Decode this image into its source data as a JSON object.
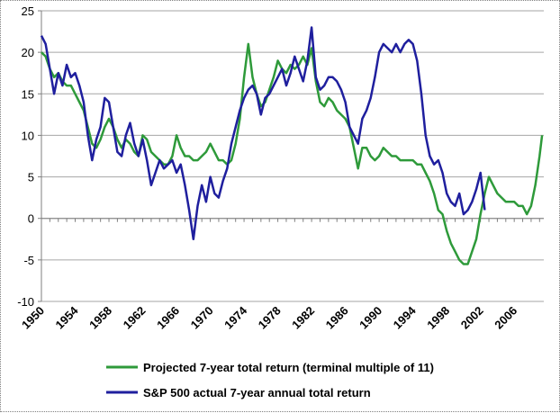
{
  "chart_data": {
    "type": "line",
    "title": "",
    "xlabel": "",
    "ylabel": "",
    "xlim": [
      1950,
      2009.5
    ],
    "ylim": [
      -10,
      25
    ],
    "yticks": [
      -10,
      -5,
      0,
      5,
      10,
      15,
      20,
      25
    ],
    "xticks": [
      1950,
      1954,
      1958,
      1962,
      1966,
      1970,
      1974,
      1978,
      1982,
      1986,
      1990,
      1994,
      1998,
      2002,
      2006
    ],
    "ytick_labels": [
      "-10",
      "-5",
      "0",
      "5",
      "10",
      "15",
      "20",
      "25"
    ],
    "xtick_labels": [
      "1950",
      "1954",
      "1958",
      "1962",
      "1966",
      "1970",
      "1974",
      "1978",
      "1982",
      "1986",
      "1990",
      "1994",
      "1998",
      "2002",
      "2006"
    ],
    "grid": "horizontal",
    "legend_position": "bottom",
    "series": [
      {
        "name": "Projected 7-year total return (terminal multiple of 11)",
        "color": "#2e9a3a",
        "points": [
          [
            1950.0,
            20.0
          ],
          [
            1950.5,
            19.5
          ],
          [
            1951.0,
            18.0
          ],
          [
            1951.5,
            17.0
          ],
          [
            1952.0,
            17.5
          ],
          [
            1952.5,
            16.5
          ],
          [
            1953.0,
            16.0
          ],
          [
            1953.5,
            16.0
          ],
          [
            1954.0,
            15.0
          ],
          [
            1954.5,
            14.0
          ],
          [
            1955.0,
            13.0
          ],
          [
            1955.5,
            11.0
          ],
          [
            1956.0,
            9.0
          ],
          [
            1956.5,
            8.5
          ],
          [
            1957.0,
            9.5
          ],
          [
            1957.5,
            11.0
          ],
          [
            1958.0,
            12.0
          ],
          [
            1958.5,
            11.0
          ],
          [
            1959.0,
            9.5
          ],
          [
            1959.5,
            8.5
          ],
          [
            1960.0,
            9.5
          ],
          [
            1960.5,
            9.0
          ],
          [
            1961.0,
            8.0
          ],
          [
            1961.5,
            7.5
          ],
          [
            1962.0,
            10.0
          ],
          [
            1962.5,
            9.5
          ],
          [
            1963.0,
            8.0
          ],
          [
            1963.5,
            7.5
          ],
          [
            1964.0,
            7.0
          ],
          [
            1964.5,
            6.5
          ],
          [
            1965.0,
            6.5
          ],
          [
            1965.5,
            7.5
          ],
          [
            1966.0,
            10.0
          ],
          [
            1966.5,
            8.5
          ],
          [
            1967.0,
            7.5
          ],
          [
            1967.5,
            7.5
          ],
          [
            1968.0,
            7.0
          ],
          [
            1968.5,
            7.0
          ],
          [
            1969.0,
            7.5
          ],
          [
            1969.5,
            8.0
          ],
          [
            1970.0,
            9.0
          ],
          [
            1970.5,
            8.0
          ],
          [
            1971.0,
            7.0
          ],
          [
            1971.5,
            7.0
          ],
          [
            1972.0,
            6.5
          ],
          [
            1972.5,
            7.0
          ],
          [
            1973.0,
            9.0
          ],
          [
            1973.5,
            12.0
          ],
          [
            1974.0,
            17.0
          ],
          [
            1974.5,
            21.0
          ],
          [
            1975.0,
            17.0
          ],
          [
            1975.5,
            15.0
          ],
          [
            1976.0,
            13.5
          ],
          [
            1976.5,
            14.0
          ],
          [
            1977.0,
            15.5
          ],
          [
            1977.5,
            17.0
          ],
          [
            1978.0,
            19.0
          ],
          [
            1978.5,
            18.0
          ],
          [
            1979.0,
            17.5
          ],
          [
            1979.5,
            18.5
          ],
          [
            1980.0,
            18.0
          ],
          [
            1980.5,
            18.5
          ],
          [
            1981.0,
            19.5
          ],
          [
            1981.5,
            18.5
          ],
          [
            1982.0,
            20.5
          ],
          [
            1982.5,
            16.5
          ],
          [
            1983.0,
            14.0
          ],
          [
            1983.5,
            13.5
          ],
          [
            1984.0,
            14.5
          ],
          [
            1984.5,
            14.0
          ],
          [
            1985.0,
            13.0
          ],
          [
            1985.5,
            12.5
          ],
          [
            1986.0,
            12.0
          ],
          [
            1986.5,
            11.0
          ],
          [
            1987.0,
            8.5
          ],
          [
            1987.5,
            6.0
          ],
          [
            1988.0,
            8.5
          ],
          [
            1988.5,
            8.5
          ],
          [
            1989.0,
            7.5
          ],
          [
            1989.5,
            7.0
          ],
          [
            1990.0,
            7.5
          ],
          [
            1990.5,
            8.5
          ],
          [
            1991.0,
            8.0
          ],
          [
            1991.5,
            7.5
          ],
          [
            1992.0,
            7.5
          ],
          [
            1992.5,
            7.0
          ],
          [
            1993.0,
            7.0
          ],
          [
            1993.5,
            7.0
          ],
          [
            1994.0,
            7.0
          ],
          [
            1994.5,
            6.5
          ],
          [
            1995.0,
            6.5
          ],
          [
            1995.5,
            5.5
          ],
          [
            1996.0,
            4.5
          ],
          [
            1996.5,
            3.0
          ],
          [
            1997.0,
            1.0
          ],
          [
            1997.5,
            0.5
          ],
          [
            1998.0,
            -1.5
          ],
          [
            1998.5,
            -3.0
          ],
          [
            1999.0,
            -4.0
          ],
          [
            1999.5,
            -5.0
          ],
          [
            2000.0,
            -5.5
          ],
          [
            2000.5,
            -5.5
          ],
          [
            2001.0,
            -4.0
          ],
          [
            2001.5,
            -2.5
          ],
          [
            2002.0,
            0.5
          ],
          [
            2002.5,
            3.0
          ],
          [
            2003.0,
            5.0
          ],
          [
            2003.5,
            4.0
          ],
          [
            2004.0,
            3.0
          ],
          [
            2004.5,
            2.5
          ],
          [
            2005.0,
            2.0
          ],
          [
            2005.5,
            2.0
          ],
          [
            2006.0,
            2.0
          ],
          [
            2006.5,
            1.5
          ],
          [
            2007.0,
            1.5
          ],
          [
            2007.5,
            0.5
          ],
          [
            2008.0,
            1.5
          ],
          [
            2008.5,
            4.0
          ],
          [
            2009.0,
            7.5
          ],
          [
            2009.3,
            10.0
          ]
        ]
      },
      {
        "name": "S&P 500 actual 7-year annual total return",
        "color": "#1f1f9e",
        "points": [
          [
            1950.0,
            22.0
          ],
          [
            1950.5,
            21.0
          ],
          [
            1951.0,
            18.0
          ],
          [
            1951.5,
            15.0
          ],
          [
            1952.0,
            17.5
          ],
          [
            1952.5,
            16.0
          ],
          [
            1953.0,
            18.5
          ],
          [
            1953.5,
            17.0
          ],
          [
            1954.0,
            17.5
          ],
          [
            1954.5,
            16.0
          ],
          [
            1955.0,
            14.0
          ],
          [
            1955.5,
            10.0
          ],
          [
            1956.0,
            7.0
          ],
          [
            1956.5,
            9.5
          ],
          [
            1957.0,
            11.0
          ],
          [
            1957.5,
            14.5
          ],
          [
            1958.0,
            14.0
          ],
          [
            1958.5,
            11.0
          ],
          [
            1959.0,
            8.0
          ],
          [
            1959.5,
            7.5
          ],
          [
            1960.0,
            10.0
          ],
          [
            1960.5,
            11.5
          ],
          [
            1961.0,
            9.0
          ],
          [
            1961.5,
            7.5
          ],
          [
            1962.0,
            9.5
          ],
          [
            1962.5,
            7.0
          ],
          [
            1963.0,
            4.0
          ],
          [
            1963.5,
            5.5
          ],
          [
            1964.0,
            7.0
          ],
          [
            1964.5,
            6.0
          ],
          [
            1965.0,
            6.5
          ],
          [
            1965.5,
            7.0
          ],
          [
            1966.0,
            5.5
          ],
          [
            1966.5,
            6.5
          ],
          [
            1967.0,
            4.0
          ],
          [
            1967.5,
            1.0
          ],
          [
            1968.0,
            -2.5
          ],
          [
            1968.5,
            1.5
          ],
          [
            1969.0,
            4.0
          ],
          [
            1969.5,
            2.0
          ],
          [
            1970.0,
            5.0
          ],
          [
            1970.5,
            3.0
          ],
          [
            1971.0,
            2.5
          ],
          [
            1971.5,
            4.5
          ],
          [
            1972.0,
            6.0
          ],
          [
            1972.5,
            9.0
          ],
          [
            1973.0,
            11.0
          ],
          [
            1973.5,
            13.0
          ],
          [
            1974.0,
            14.5
          ],
          [
            1974.5,
            15.5
          ],
          [
            1975.0,
            16.0
          ],
          [
            1975.5,
            15.0
          ],
          [
            1976.0,
            12.5
          ],
          [
            1976.5,
            14.5
          ],
          [
            1977.0,
            15.0
          ],
          [
            1977.5,
            16.0
          ],
          [
            1978.0,
            17.0
          ],
          [
            1978.5,
            18.0
          ],
          [
            1979.0,
            16.0
          ],
          [
            1979.5,
            17.5
          ],
          [
            1980.0,
            19.5
          ],
          [
            1980.5,
            18.0
          ],
          [
            1981.0,
            16.5
          ],
          [
            1981.5,
            19.0
          ],
          [
            1982.0,
            23.0
          ],
          [
            1982.5,
            17.0
          ],
          [
            1983.0,
            15.5
          ],
          [
            1983.5,
            16.0
          ],
          [
            1984.0,
            17.0
          ],
          [
            1984.5,
            17.0
          ],
          [
            1985.0,
            16.5
          ],
          [
            1985.5,
            15.5
          ],
          [
            1986.0,
            14.0
          ],
          [
            1986.5,
            11.0
          ],
          [
            1987.0,
            10.0
          ],
          [
            1987.5,
            9.0
          ],
          [
            1988.0,
            12.0
          ],
          [
            1988.5,
            13.0
          ],
          [
            1989.0,
            14.5
          ],
          [
            1989.5,
            17.0
          ],
          [
            1990.0,
            20.0
          ],
          [
            1990.5,
            21.0
          ],
          [
            1991.0,
            20.5
          ],
          [
            1991.5,
            20.0
          ],
          [
            1992.0,
            21.0
          ],
          [
            1992.5,
            20.0
          ],
          [
            1993.0,
            21.0
          ],
          [
            1993.5,
            21.5
          ],
          [
            1994.0,
            21.0
          ],
          [
            1994.5,
            19.0
          ],
          [
            1995.0,
            15.0
          ],
          [
            1995.5,
            10.0
          ],
          [
            1996.0,
            7.5
          ],
          [
            1996.5,
            6.5
          ],
          [
            1997.0,
            7.0
          ],
          [
            1997.5,
            5.5
          ],
          [
            1998.0,
            3.0
          ],
          [
            1998.5,
            2.0
          ],
          [
            1999.0,
            1.5
          ],
          [
            1999.5,
            3.0
          ],
          [
            2000.0,
            0.5
          ],
          [
            2000.5,
            1.0
          ],
          [
            2001.0,
            2.0
          ],
          [
            2001.5,
            3.5
          ],
          [
            2002.0,
            5.5
          ],
          [
            2002.5,
            1.0
          ]
        ]
      }
    ]
  }
}
